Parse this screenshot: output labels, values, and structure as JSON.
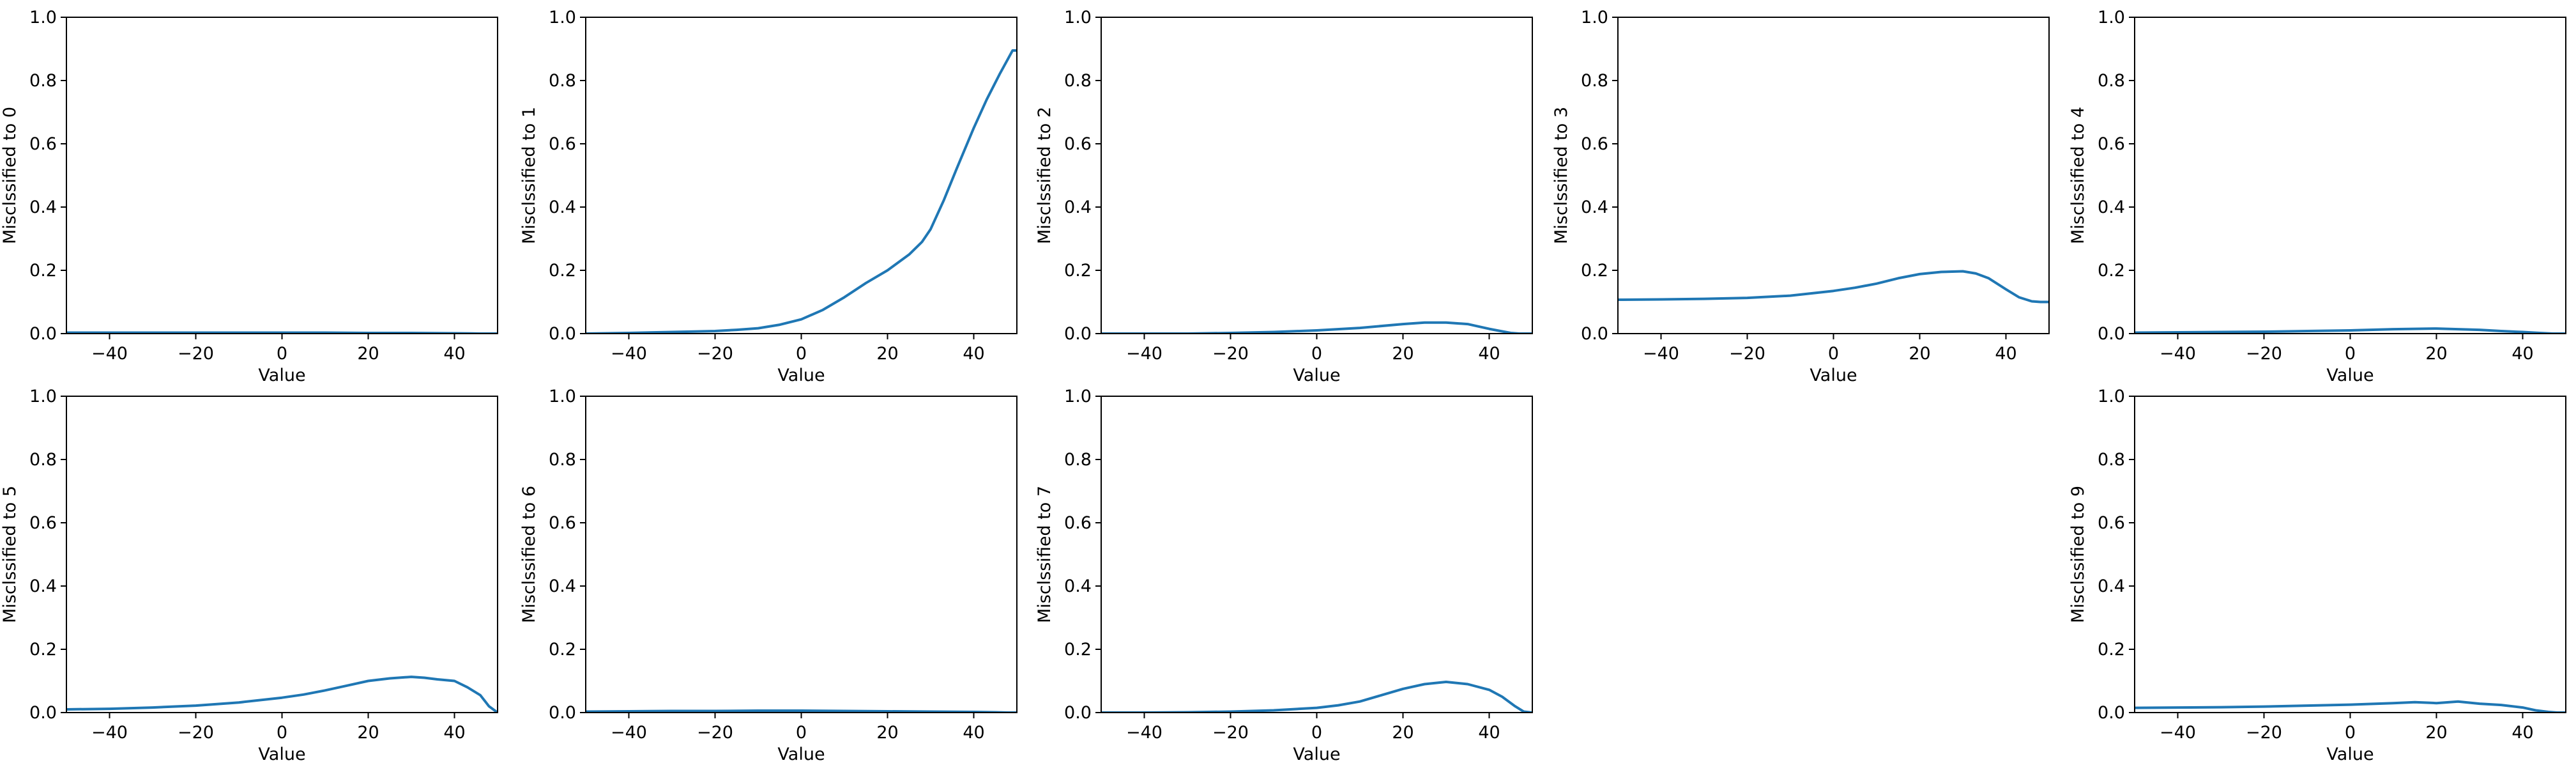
{
  "figure": {
    "background": "#ffffff",
    "line_color": "#1f77b4"
  },
  "chart_data": [
    {
      "type": "line",
      "xlabel": "Value",
      "ylabel": "Misclssified to 0",
      "xlim": [
        -50,
        50
      ],
      "ylim": [
        0,
        1
      ],
      "xticks": [
        "−40",
        "−20",
        "0",
        "20",
        "40"
      ],
      "yticks": [
        "0.0",
        "0.2",
        "0.4",
        "0.6",
        "0.8",
        "1.0"
      ],
      "grid": false,
      "series": [
        {
          "x": [
            -50,
            -40,
            -30,
            -20,
            -10,
            0,
            10,
            20,
            30,
            40,
            44,
            46,
            48,
            50
          ],
          "y": [
            0.003,
            0.003,
            0.003,
            0.003,
            0.003,
            0.003,
            0.003,
            0.002,
            0.002,
            0.001,
            0.0005,
            0.0,
            0.0,
            0.0
          ]
        }
      ]
    },
    {
      "type": "line",
      "xlabel": "Value",
      "ylabel": "Misclssified to 1",
      "xlim": [
        -50,
        50
      ],
      "ylim": [
        0,
        1
      ],
      "xticks": [
        "−40",
        "−20",
        "0",
        "20",
        "40"
      ],
      "yticks": [
        "0.0",
        "0.2",
        "0.4",
        "0.6",
        "0.8",
        "1.0"
      ],
      "grid": false,
      "series": [
        {
          "x": [
            -50,
            -40,
            -30,
            -20,
            -15,
            -10,
            -5,
            0,
            5,
            10,
            15,
            20,
            25,
            28,
            30,
            33,
            36,
            40,
            43,
            46,
            48,
            49,
            50
          ],
          "y": [
            0.0,
            0.002,
            0.005,
            0.008,
            0.012,
            0.017,
            0.028,
            0.045,
            0.075,
            0.115,
            0.16,
            0.2,
            0.25,
            0.29,
            0.33,
            0.42,
            0.52,
            0.65,
            0.74,
            0.82,
            0.87,
            0.895,
            0.895
          ]
        }
      ]
    },
    {
      "type": "line",
      "xlabel": "Value",
      "ylabel": "Misclssified to 2",
      "xlim": [
        -50,
        50
      ],
      "ylim": [
        0,
        1
      ],
      "xticks": [
        "−40",
        "−20",
        "0",
        "20",
        "40"
      ],
      "yticks": [
        "0.0",
        "0.2",
        "0.4",
        "0.6",
        "0.8",
        "1.0"
      ],
      "grid": false,
      "series": [
        {
          "x": [
            -50,
            -40,
            -30,
            -20,
            -10,
            0,
            10,
            20,
            25,
            30,
            35,
            40,
            43,
            45,
            47,
            50
          ],
          "y": [
            0.0,
            0.0,
            0.0,
            0.002,
            0.005,
            0.01,
            0.018,
            0.03,
            0.035,
            0.035,
            0.03,
            0.015,
            0.007,
            0.002,
            0.0,
            0.0
          ]
        }
      ]
    },
    {
      "type": "line",
      "xlabel": "Value",
      "ylabel": "Misclssified to 3",
      "xlim": [
        -50,
        50
      ],
      "ylim": [
        0,
        1
      ],
      "xticks": [
        "−40",
        "−20",
        "0",
        "20",
        "40"
      ],
      "yticks": [
        "0.0",
        "0.2",
        "0.4",
        "0.6",
        "0.8",
        "1.0"
      ],
      "grid": false,
      "series": [
        {
          "x": [
            -50,
            -40,
            -30,
            -20,
            -10,
            0,
            5,
            10,
            15,
            20,
            25,
            30,
            33,
            36,
            40,
            43,
            46,
            48,
            50
          ],
          "y": [
            0.107,
            0.108,
            0.11,
            0.113,
            0.12,
            0.135,
            0.145,
            0.158,
            0.175,
            0.188,
            0.195,
            0.197,
            0.19,
            0.175,
            0.14,
            0.115,
            0.102,
            0.1,
            0.1
          ]
        }
      ]
    },
    {
      "type": "line",
      "xlabel": "Value",
      "ylabel": "Misclssified to 4",
      "xlim": [
        -50,
        50
      ],
      "ylim": [
        0,
        1
      ],
      "xticks": [
        "−40",
        "−20",
        "0",
        "20",
        "40"
      ],
      "yticks": [
        "0.0",
        "0.2",
        "0.4",
        "0.6",
        "0.8",
        "1.0"
      ],
      "grid": false,
      "series": [
        {
          "x": [
            -50,
            -40,
            -30,
            -20,
            -10,
            0,
            10,
            20,
            25,
            30,
            35,
            40,
            44,
            47,
            50
          ],
          "y": [
            0.003,
            0.004,
            0.005,
            0.006,
            0.008,
            0.01,
            0.014,
            0.016,
            0.014,
            0.012,
            0.008,
            0.005,
            0.002,
            0.0,
            0.0
          ]
        }
      ]
    },
    {
      "type": "line",
      "xlabel": "Value",
      "ylabel": "Misclssified to 5",
      "xlim": [
        -50,
        50
      ],
      "ylim": [
        0,
        1
      ],
      "xticks": [
        "−40",
        "−20",
        "0",
        "20",
        "40"
      ],
      "yticks": [
        "0.0",
        "0.2",
        "0.4",
        "0.6",
        "0.8",
        "1.0"
      ],
      "grid": false,
      "series": [
        {
          "x": [
            -50,
            -40,
            -30,
            -20,
            -10,
            0,
            5,
            10,
            15,
            20,
            25,
            30,
            33,
            36,
            40,
            43,
            46,
            48,
            50
          ],
          "y": [
            0.01,
            0.012,
            0.016,
            0.022,
            0.032,
            0.047,
            0.057,
            0.07,
            0.085,
            0.1,
            0.108,
            0.113,
            0.11,
            0.105,
            0.1,
            0.08,
            0.055,
            0.02,
            0.0
          ]
        }
      ]
    },
    {
      "type": "line",
      "xlabel": "Value",
      "ylabel": "Misclssified to 6",
      "xlim": [
        -50,
        50
      ],
      "ylim": [
        0,
        1
      ],
      "xticks": [
        "−40",
        "−20",
        "0",
        "20",
        "40"
      ],
      "yticks": [
        "0.0",
        "0.2",
        "0.4",
        "0.6",
        "0.8",
        "1.0"
      ],
      "grid": false,
      "series": [
        {
          "x": [
            -50,
            -40,
            -30,
            -20,
            -10,
            0,
            10,
            20,
            30,
            40,
            45,
            48,
            50
          ],
          "y": [
            0.003,
            0.004,
            0.005,
            0.005,
            0.006,
            0.006,
            0.005,
            0.004,
            0.003,
            0.002,
            0.001,
            0.0,
            0.0
          ]
        }
      ]
    },
    {
      "type": "line",
      "xlabel": "Value",
      "ylabel": "Misclssified to 7",
      "xlim": [
        -50,
        50
      ],
      "ylim": [
        0,
        1
      ],
      "xticks": [
        "−40",
        "−20",
        "0",
        "20",
        "40"
      ],
      "yticks": [
        "0.0",
        "0.2",
        "0.4",
        "0.6",
        "0.8",
        "1.0"
      ],
      "grid": false,
      "series": [
        {
          "x": [
            -50,
            -40,
            -30,
            -20,
            -10,
            0,
            5,
            10,
            15,
            20,
            25,
            30,
            35,
            40,
            43,
            46,
            48,
            50
          ],
          "y": [
            0.0,
            0.0,
            0.001,
            0.003,
            0.007,
            0.015,
            0.023,
            0.035,
            0.055,
            0.075,
            0.09,
            0.097,
            0.09,
            0.072,
            0.05,
            0.02,
            0.003,
            0.0
          ]
        }
      ]
    },
    {
      "type": "line",
      "xlabel": "Value",
      "ylabel": "Misclssified to 9",
      "xlim": [
        -50,
        50
      ],
      "ylim": [
        0,
        1
      ],
      "xticks": [
        "−40",
        "−20",
        "0",
        "20",
        "40"
      ],
      "yticks": [
        "0.0",
        "0.2",
        "0.4",
        "0.6",
        "0.8",
        "1.0"
      ],
      "grid": false,
      "series": [
        {
          "x": [
            -50,
            -40,
            -30,
            -20,
            -10,
            0,
            10,
            15,
            20,
            25,
            30,
            35,
            40,
            43,
            46,
            48,
            50
          ],
          "y": [
            0.015,
            0.016,
            0.017,
            0.019,
            0.022,
            0.025,
            0.03,
            0.033,
            0.03,
            0.035,
            0.028,
            0.024,
            0.016,
            0.007,
            0.002,
            0.0,
            0.0
          ]
        }
      ]
    }
  ]
}
